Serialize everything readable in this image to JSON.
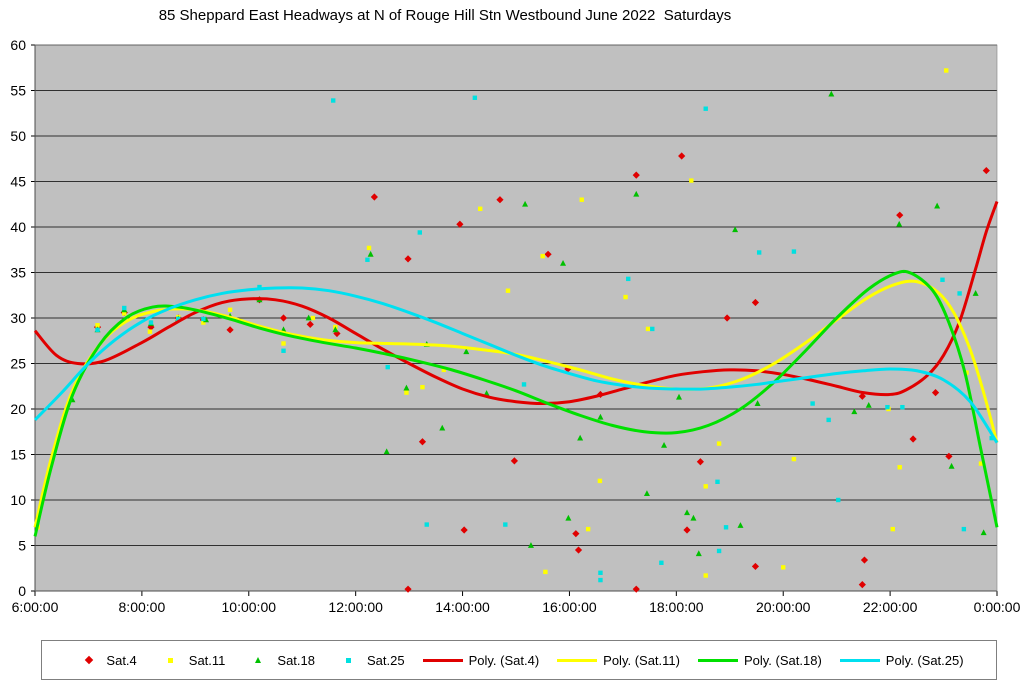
{
  "chart_data": {
    "type": "scatter",
    "title": "85 Sheppard East Headways at N of Rouge Hill Stn Westbound June 2022  Saturdays",
    "xlabel": "",
    "ylabel": "",
    "xlim": [
      6,
      24
    ],
    "ylim": [
      0,
      60
    ],
    "y_ticks": [
      0,
      5,
      10,
      15,
      20,
      25,
      30,
      35,
      40,
      45,
      50,
      55,
      60
    ],
    "x_ticks": [
      6,
      8,
      10,
      12,
      14,
      16,
      18,
      20,
      22,
      24
    ],
    "x_tick_labels": [
      "6:00:00",
      "8:00:00",
      "10:00:00",
      "12:00:00",
      "14:00:00",
      "16:00:00",
      "18:00:00",
      "20:00:00",
      "22:00:00",
      "0:00:00"
    ],
    "plot_background": "#c0c0c0",
    "grid": true,
    "legend_position": "bottom",
    "series": [
      {
        "name": "Sat.4",
        "marker": "diamond",
        "color": "#e00000",
        "points": [
          [
            7.17,
            29.0
          ],
          [
            7.67,
            30.6
          ],
          [
            8.17,
            29.0
          ],
          [
            8.68,
            30.0
          ],
          [
            9.15,
            29.8
          ],
          [
            9.65,
            28.7
          ],
          [
            10.2,
            32.0
          ],
          [
            10.65,
            30.0
          ],
          [
            11.15,
            29.3
          ],
          [
            11.65,
            28.3
          ],
          [
            12.35,
            43.3
          ],
          [
            12.98,
            36.5
          ],
          [
            12.98,
            0.2
          ],
          [
            13.25,
            16.4
          ],
          [
            13.95,
            40.3
          ],
          [
            14.03,
            6.7
          ],
          [
            14.7,
            43.0
          ],
          [
            14.97,
            14.3
          ],
          [
            15.6,
            37.0
          ],
          [
            15.97,
            24.4
          ],
          [
            16.12,
            6.3
          ],
          [
            16.17,
            4.5
          ],
          [
            16.58,
            21.6
          ],
          [
            17.25,
            45.7
          ],
          [
            17.25,
            0.2
          ],
          [
            18.1,
            47.8
          ],
          [
            18.2,
            6.7
          ],
          [
            18.45,
            14.2
          ],
          [
            18.95,
            30.0
          ],
          [
            19.48,
            31.7
          ],
          [
            19.48,
            2.7
          ],
          [
            21.48,
            21.4
          ],
          [
            21.52,
            3.4
          ],
          [
            21.48,
            0.7
          ],
          [
            22.18,
            41.3
          ],
          [
            22.43,
            16.7
          ],
          [
            22.85,
            21.8
          ],
          [
            23.1,
            14.8
          ],
          [
            23.8,
            46.2
          ]
        ]
      },
      {
        "name": "Sat.11",
        "marker": "square",
        "color": "#ffff00",
        "points": [
          [
            6.05,
            7.0
          ],
          [
            7.17,
            29.2
          ],
          [
            7.67,
            30.5
          ],
          [
            8.15,
            28.5
          ],
          [
            8.68,
            30.1
          ],
          [
            9.15,
            29.5
          ],
          [
            9.65,
            30.9
          ],
          [
            10.2,
            32.0
          ],
          [
            10.65,
            27.2
          ],
          [
            11.2,
            30.0
          ],
          [
            11.62,
            29.0
          ],
          [
            12.25,
            37.7
          ],
          [
            12.95,
            21.8
          ],
          [
            13.25,
            22.4
          ],
          [
            13.65,
            24.3
          ],
          [
            14.33,
            42.0
          ],
          [
            14.85,
            33.0
          ],
          [
            15.5,
            36.8
          ],
          [
            15.55,
            2.1
          ],
          [
            16.23,
            43.0
          ],
          [
            16.35,
            6.8
          ],
          [
            16.57,
            12.1
          ],
          [
            17.05,
            32.3
          ],
          [
            17.47,
            28.8
          ],
          [
            18.28,
            45.1
          ],
          [
            18.55,
            11.5
          ],
          [
            18.55,
            1.7
          ],
          [
            18.8,
            16.2
          ],
          [
            20.0,
            2.6
          ],
          [
            20.2,
            14.5
          ],
          [
            21.97,
            20.0
          ],
          [
            22.05,
            6.8
          ],
          [
            22.18,
            13.6
          ],
          [
            23.05,
            57.2
          ],
          [
            23.43,
            24.0
          ],
          [
            23.7,
            14.0
          ]
        ]
      },
      {
        "name": "Sat.18",
        "marker": "triangle",
        "color": "#00c000",
        "points": [
          [
            6.7,
            21.0
          ],
          [
            7.17,
            28.7
          ],
          [
            7.67,
            30.9
          ],
          [
            8.17,
            29.4
          ],
          [
            8.68,
            29.9
          ],
          [
            9.2,
            29.8
          ],
          [
            9.65,
            30.2
          ],
          [
            10.2,
            32.0
          ],
          [
            10.65,
            28.7
          ],
          [
            11.12,
            30.0
          ],
          [
            11.62,
            28.7
          ],
          [
            12.28,
            37.0
          ],
          [
            12.95,
            22.3
          ],
          [
            12.58,
            15.3
          ],
          [
            13.33,
            27.1
          ],
          [
            13.62,
            17.9
          ],
          [
            14.07,
            26.3
          ],
          [
            14.45,
            21.7
          ],
          [
            15.17,
            42.5
          ],
          [
            15.28,
            5.0
          ],
          [
            15.88,
            36.0
          ],
          [
            15.98,
            8.0
          ],
          [
            16.2,
            16.8
          ],
          [
            16.58,
            19.1
          ],
          [
            17.25,
            43.6
          ],
          [
            17.45,
            10.7
          ],
          [
            17.77,
            16.0
          ],
          [
            18.05,
            21.3
          ],
          [
            18.2,
            8.6
          ],
          [
            18.32,
            8.0
          ],
          [
            18.42,
            4.1
          ],
          [
            19.1,
            39.7
          ],
          [
            19.2,
            7.2
          ],
          [
            19.52,
            20.6
          ],
          [
            20.9,
            54.6
          ],
          [
            21.33,
            19.7
          ],
          [
            21.6,
            20.4
          ],
          [
            22.17,
            40.3
          ],
          [
            22.88,
            42.3
          ],
          [
            23.15,
            13.7
          ],
          [
            23.6,
            32.7
          ],
          [
            23.75,
            6.4
          ]
        ]
      },
      {
        "name": "Sat.25",
        "marker": "square",
        "color": "#00e0e0",
        "points": [
          [
            7.17,
            28.7
          ],
          [
            7.67,
            31.1
          ],
          [
            8.17,
            29.5
          ],
          [
            8.68,
            29.9
          ],
          [
            9.15,
            29.9
          ],
          [
            10.2,
            33.4
          ],
          [
            10.65,
            26.4
          ],
          [
            11.58,
            53.9
          ],
          [
            12.22,
            36.4
          ],
          [
            12.6,
            24.6
          ],
          [
            13.2,
            39.4
          ],
          [
            13.33,
            7.3
          ],
          [
            14.23,
            54.2
          ],
          [
            14.8,
            7.3
          ],
          [
            15.15,
            22.7
          ],
          [
            16.58,
            2.0
          ],
          [
            16.58,
            1.2
          ],
          [
            17.1,
            34.3
          ],
          [
            17.55,
            28.8
          ],
          [
            17.72,
            3.1
          ],
          [
            18.55,
            53.0
          ],
          [
            18.77,
            12.0
          ],
          [
            18.8,
            4.4
          ],
          [
            18.93,
            7.0
          ],
          [
            19.55,
            37.2
          ],
          [
            20.2,
            37.3
          ],
          [
            20.55,
            20.6
          ],
          [
            20.85,
            18.8
          ],
          [
            21.03,
            10.0
          ],
          [
            21.95,
            20.2
          ],
          [
            22.23,
            20.2
          ],
          [
            22.98,
            34.2
          ],
          [
            23.3,
            32.7
          ],
          [
            23.38,
            6.8
          ],
          [
            23.9,
            16.8
          ]
        ]
      }
    ],
    "trendlines": [
      {
        "name": "Poly. (Sat.4)",
        "color": "#e00000",
        "points": [
          [
            6,
            28.6
          ],
          [
            6.4,
            25.9
          ],
          [
            6.8,
            25.0
          ],
          [
            7.3,
            25.3
          ],
          [
            8,
            27.3
          ],
          [
            8.5,
            29.0
          ],
          [
            9,
            30.6
          ],
          [
            9.5,
            31.7
          ],
          [
            10,
            32.1
          ],
          [
            10.5,
            32.0
          ],
          [
            11,
            31.3
          ],
          [
            11.5,
            30.0
          ],
          [
            12,
            28.3
          ],
          [
            12.5,
            26.6
          ],
          [
            13,
            25.0
          ],
          [
            13.5,
            23.5
          ],
          [
            14,
            22.2
          ],
          [
            14.5,
            21.3
          ],
          [
            15,
            20.8
          ],
          [
            15.5,
            20.6
          ],
          [
            16,
            20.8
          ],
          [
            16.5,
            21.4
          ],
          [
            17,
            22.2
          ],
          [
            17.5,
            23.0
          ],
          [
            18,
            23.7
          ],
          [
            18.5,
            24.1
          ],
          [
            19,
            24.3
          ],
          [
            19.5,
            24.2
          ],
          [
            20,
            23.8
          ],
          [
            20.5,
            23.2
          ],
          [
            21,
            22.5
          ],
          [
            21.5,
            21.8
          ],
          [
            22,
            21.6
          ],
          [
            22.3,
            22.1
          ],
          [
            22.7,
            23.7
          ],
          [
            23,
            25.9
          ],
          [
            23.3,
            29.6
          ],
          [
            23.6,
            35.4
          ],
          [
            23.8,
            39.5
          ],
          [
            24,
            42.8
          ]
        ]
      },
      {
        "name": "Poly. (Sat.11)",
        "color": "#ffff00",
        "points": [
          [
            6,
            7.0
          ],
          [
            6.3,
            14.5
          ],
          [
            6.7,
            22.0
          ],
          [
            7.2,
            27.0
          ],
          [
            7.7,
            29.6
          ],
          [
            8.2,
            30.7
          ],
          [
            8.7,
            31.0
          ],
          [
            9.2,
            30.7
          ],
          [
            9.7,
            30.0
          ],
          [
            10.2,
            29.1
          ],
          [
            10.8,
            28.2
          ],
          [
            11.4,
            27.6
          ],
          [
            12,
            27.3
          ],
          [
            12.6,
            27.2
          ],
          [
            13.2,
            27.1
          ],
          [
            13.8,
            26.9
          ],
          [
            14.4,
            26.5
          ],
          [
            15,
            26.0
          ],
          [
            15.6,
            25.2
          ],
          [
            16.2,
            24.3
          ],
          [
            16.8,
            23.3
          ],
          [
            17.4,
            22.6
          ],
          [
            18,
            22.2
          ],
          [
            18.6,
            22.3
          ],
          [
            19.2,
            23.2
          ],
          [
            19.8,
            24.9
          ],
          [
            20.4,
            27.2
          ],
          [
            21,
            29.8
          ],
          [
            21.6,
            32.3
          ],
          [
            22.1,
            33.7
          ],
          [
            22.5,
            34.0
          ],
          [
            22.9,
            32.8
          ],
          [
            23.2,
            30.5
          ],
          [
            23.5,
            26.5
          ],
          [
            23.75,
            21.8
          ],
          [
            24,
            16.3
          ]
        ]
      },
      {
        "name": "Poly. (Sat.18)",
        "color": "#00e000",
        "points": [
          [
            6,
            6.0
          ],
          [
            6.3,
            13.5
          ],
          [
            6.7,
            21.5
          ],
          [
            7.2,
            27.0
          ],
          [
            7.7,
            30.0
          ],
          [
            8.2,
            31.2
          ],
          [
            8.7,
            31.2
          ],
          [
            9.2,
            30.6
          ],
          [
            9.7,
            29.8
          ],
          [
            10.2,
            28.9
          ],
          [
            10.8,
            28.0
          ],
          [
            11.4,
            27.3
          ],
          [
            12,
            26.7
          ],
          [
            12.6,
            26.0
          ],
          [
            13.2,
            25.2
          ],
          [
            13.8,
            24.3
          ],
          [
            14.4,
            23.2
          ],
          [
            15,
            22.0
          ],
          [
            15.6,
            20.6
          ],
          [
            16.2,
            19.3
          ],
          [
            16.8,
            18.2
          ],
          [
            17.4,
            17.5
          ],
          [
            18,
            17.4
          ],
          [
            18.6,
            18.2
          ],
          [
            19.2,
            20.0
          ],
          [
            19.8,
            22.8
          ],
          [
            20.4,
            26.3
          ],
          [
            21,
            30.0
          ],
          [
            21.6,
            33.2
          ],
          [
            22.1,
            34.9
          ],
          [
            22.4,
            34.9
          ],
          [
            22.8,
            33.0
          ],
          [
            23.1,
            29.5
          ],
          [
            23.4,
            24.0
          ],
          [
            23.7,
            15.5
          ],
          [
            24,
            7.0
          ]
        ]
      },
      {
        "name": "Poly. (Sat.25)",
        "color": "#00e0f0",
        "points": [
          [
            6,
            18.8
          ],
          [
            6.5,
            21.8
          ],
          [
            7,
            25.0
          ],
          [
            7.5,
            27.6
          ],
          [
            8,
            29.6
          ],
          [
            8.5,
            31.0
          ],
          [
            9,
            32.0
          ],
          [
            9.5,
            32.7
          ],
          [
            10,
            33.1
          ],
          [
            10.5,
            33.3
          ],
          [
            11,
            33.3
          ],
          [
            11.5,
            33.0
          ],
          [
            12,
            32.4
          ],
          [
            12.5,
            31.6
          ],
          [
            13,
            30.6
          ],
          [
            13.5,
            29.5
          ],
          [
            14,
            28.3
          ],
          [
            14.5,
            27.1
          ],
          [
            15,
            25.9
          ],
          [
            15.5,
            24.8
          ],
          [
            16,
            23.9
          ],
          [
            16.5,
            23.1
          ],
          [
            17,
            22.6
          ],
          [
            17.5,
            22.3
          ],
          [
            18,
            22.2
          ],
          [
            18.5,
            22.2
          ],
          [
            19,
            22.4
          ],
          [
            19.5,
            22.7
          ],
          [
            20,
            23.1
          ],
          [
            20.5,
            23.5
          ],
          [
            21,
            23.9
          ],
          [
            21.5,
            24.2
          ],
          [
            22,
            24.4
          ],
          [
            22.5,
            24.2
          ],
          [
            23,
            23.2
          ],
          [
            23.5,
            20.8
          ],
          [
            24,
            16.3
          ]
        ]
      }
    ]
  }
}
